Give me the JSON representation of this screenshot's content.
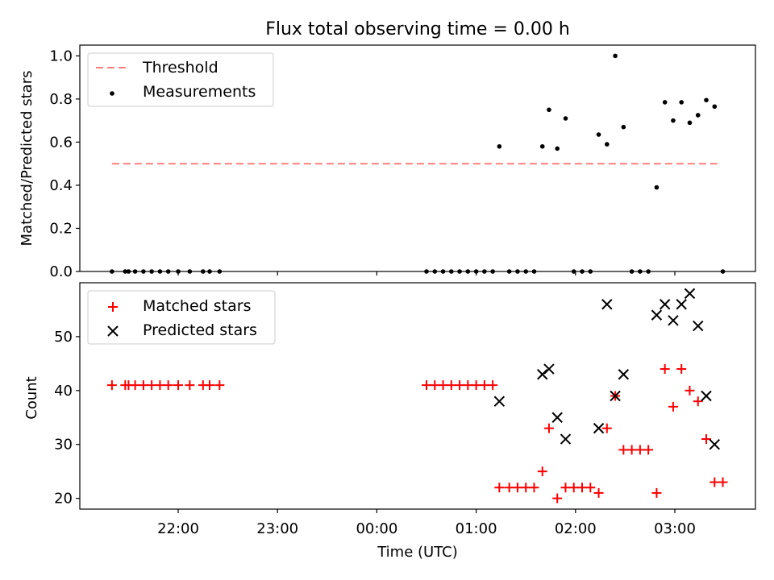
{
  "chart_data": [
    {
      "type": "scatter",
      "title": "Flux total observing time = 0.00 h",
      "xlabel": "",
      "ylabel": "Matched/Predicted stars",
      "ylim": [
        0,
        1.05
      ],
      "yticks": [
        0.0,
        0.2,
        0.4,
        0.6,
        0.8,
        1.0
      ],
      "ytick_labels": [
        "0.0",
        "0.2",
        "0.4",
        "0.6",
        "0.8",
        "1.0"
      ],
      "grid": false,
      "legend_position": "top-left",
      "series": [
        {
          "name": "Threshold",
          "kind": "dashed-line",
          "color": "#ff7f7f",
          "points": [
            {
              "x": "21:20",
              "y": 0.5
            },
            {
              "x": "03:28",
              "y": 0.5
            }
          ]
        },
        {
          "name": "Measurements",
          "kind": "points",
          "color": "#000000",
          "points": [
            {
              "x": "21:20",
              "y": 0.0
            },
            {
              "x": "21:28",
              "y": 0.0
            },
            {
              "x": "21:30",
              "y": 0.0
            },
            {
              "x": "21:34",
              "y": 0.0
            },
            {
              "x": "21:39",
              "y": 0.0
            },
            {
              "x": "21:44",
              "y": 0.0
            },
            {
              "x": "21:49",
              "y": 0.0
            },
            {
              "x": "21:54",
              "y": 0.0
            },
            {
              "x": "22:00",
              "y": 0.0
            },
            {
              "x": "22:07",
              "y": 0.0
            },
            {
              "x": "22:15",
              "y": 0.0
            },
            {
              "x": "22:19",
              "y": 0.0
            },
            {
              "x": "22:25",
              "y": 0.0
            },
            {
              "x": "00:30",
              "y": 0.0
            },
            {
              "x": "00:35",
              "y": 0.0
            },
            {
              "x": "00:40",
              "y": 0.0
            },
            {
              "x": "00:45",
              "y": 0.0
            },
            {
              "x": "00:50",
              "y": 0.0
            },
            {
              "x": "00:55",
              "y": 0.0
            },
            {
              "x": "01:00",
              "y": 0.0
            },
            {
              "x": "01:05",
              "y": 0.0
            },
            {
              "x": "01:10",
              "y": 0.0
            },
            {
              "x": "01:14",
              "y": 0.58
            },
            {
              "x": "01:20",
              "y": 0.0
            },
            {
              "x": "01:25",
              "y": 0.0
            },
            {
              "x": "01:30",
              "y": 0.0
            },
            {
              "x": "01:35",
              "y": 0.0
            },
            {
              "x": "01:40",
              "y": 0.58
            },
            {
              "x": "01:44",
              "y": 0.75
            },
            {
              "x": "01:49",
              "y": 0.57
            },
            {
              "x": "01:54",
              "y": 0.71
            },
            {
              "x": "01:59",
              "y": 0.0
            },
            {
              "x": "02:04",
              "y": 0.0
            },
            {
              "x": "02:09",
              "y": 0.0
            },
            {
              "x": "02:14",
              "y": 0.635
            },
            {
              "x": "02:19",
              "y": 0.59
            },
            {
              "x": "02:24",
              "y": 1.0
            },
            {
              "x": "02:29",
              "y": 0.67
            },
            {
              "x": "02:34",
              "y": 0.0
            },
            {
              "x": "02:39",
              "y": 0.0
            },
            {
              "x": "02:44",
              "y": 0.0
            },
            {
              "x": "02:49",
              "y": 0.39
            },
            {
              "x": "02:54",
              "y": 0.785
            },
            {
              "x": "02:59",
              "y": 0.7
            },
            {
              "x": "03:04",
              "y": 0.785
            },
            {
              "x": "03:09",
              "y": 0.69
            },
            {
              "x": "03:14",
              "y": 0.725
            },
            {
              "x": "03:19",
              "y": 0.795
            },
            {
              "x": "03:24",
              "y": 0.765
            },
            {
              "x": "03:29",
              "y": 0.0
            }
          ]
        }
      ]
    },
    {
      "type": "scatter",
      "title": "",
      "xlabel": "Time (UTC)",
      "ylabel": "Count",
      "ylim": [
        18,
        60
      ],
      "yticks": [
        20,
        30,
        40,
        50
      ],
      "ytick_labels": [
        "20",
        "30",
        "40",
        "50"
      ],
      "xticks": [
        "22:00",
        "23:00",
        "00:00",
        "01:00",
        "02:00",
        "03:00"
      ],
      "xtick_labels": [
        "22:00",
        "23:00",
        "00:00",
        "01:00",
        "02:00",
        "03:00"
      ],
      "grid": false,
      "legend_position": "top-left",
      "series": [
        {
          "name": "Matched stars",
          "marker": "plus",
          "color": "#ff0000",
          "points": [
            {
              "x": "21:20",
              "y": 41
            },
            {
              "x": "21:28",
              "y": 41
            },
            {
              "x": "21:30",
              "y": 41
            },
            {
              "x": "21:34",
              "y": 41
            },
            {
              "x": "21:39",
              "y": 41
            },
            {
              "x": "21:44",
              "y": 41
            },
            {
              "x": "21:49",
              "y": 41
            },
            {
              "x": "21:54",
              "y": 41
            },
            {
              "x": "22:00",
              "y": 41
            },
            {
              "x": "22:07",
              "y": 41
            },
            {
              "x": "22:15",
              "y": 41
            },
            {
              "x": "22:19",
              "y": 41
            },
            {
              "x": "22:25",
              "y": 41
            },
            {
              "x": "00:30",
              "y": 41
            },
            {
              "x": "00:35",
              "y": 41
            },
            {
              "x": "00:40",
              "y": 41
            },
            {
              "x": "00:45",
              "y": 41
            },
            {
              "x": "00:50",
              "y": 41
            },
            {
              "x": "00:55",
              "y": 41
            },
            {
              "x": "01:00",
              "y": 41
            },
            {
              "x": "01:05",
              "y": 41
            },
            {
              "x": "01:10",
              "y": 41
            },
            {
              "x": "01:14",
              "y": 22
            },
            {
              "x": "01:20",
              "y": 22
            },
            {
              "x": "01:25",
              "y": 22
            },
            {
              "x": "01:30",
              "y": 22
            },
            {
              "x": "01:35",
              "y": 22
            },
            {
              "x": "01:40",
              "y": 25
            },
            {
              "x": "01:44",
              "y": 33
            },
            {
              "x": "01:49",
              "y": 20
            },
            {
              "x": "01:54",
              "y": 22
            },
            {
              "x": "01:59",
              "y": 22
            },
            {
              "x": "02:04",
              "y": 22
            },
            {
              "x": "02:09",
              "y": 22
            },
            {
              "x": "02:14",
              "y": 21
            },
            {
              "x": "02:19",
              "y": 33
            },
            {
              "x": "02:24",
              "y": 39
            },
            {
              "x": "02:29",
              "y": 29
            },
            {
              "x": "02:34",
              "y": 29
            },
            {
              "x": "02:39",
              "y": 29
            },
            {
              "x": "02:44",
              "y": 29
            },
            {
              "x": "02:49",
              "y": 21
            },
            {
              "x": "02:54",
              "y": 44
            },
            {
              "x": "02:59",
              "y": 37
            },
            {
              "x": "03:04",
              "y": 44
            },
            {
              "x": "03:09",
              "y": 40
            },
            {
              "x": "03:14",
              "y": 38
            },
            {
              "x": "03:19",
              "y": 31
            },
            {
              "x": "03:24",
              "y": 23
            },
            {
              "x": "03:29",
              "y": 23
            }
          ]
        },
        {
          "name": "Predicted stars",
          "marker": "x",
          "color": "#000000",
          "points": [
            {
              "x": "01:14",
              "y": 38
            },
            {
              "x": "01:40",
              "y": 43
            },
            {
              "x": "01:44",
              "y": 44
            },
            {
              "x": "01:49",
              "y": 35
            },
            {
              "x": "01:54",
              "y": 31
            },
            {
              "x": "02:14",
              "y": 33
            },
            {
              "x": "02:19",
              "y": 56
            },
            {
              "x": "02:24",
              "y": 39
            },
            {
              "x": "02:29",
              "y": 43
            },
            {
              "x": "02:49",
              "y": 54
            },
            {
              "x": "02:54",
              "y": 56
            },
            {
              "x": "02:59",
              "y": 53
            },
            {
              "x": "03:04",
              "y": 56
            },
            {
              "x": "03:09",
              "y": 58
            },
            {
              "x": "03:14",
              "y": 52
            },
            {
              "x": "03:19",
              "y": 39
            },
            {
              "x": "03:24",
              "y": 30
            }
          ]
        }
      ]
    }
  ]
}
